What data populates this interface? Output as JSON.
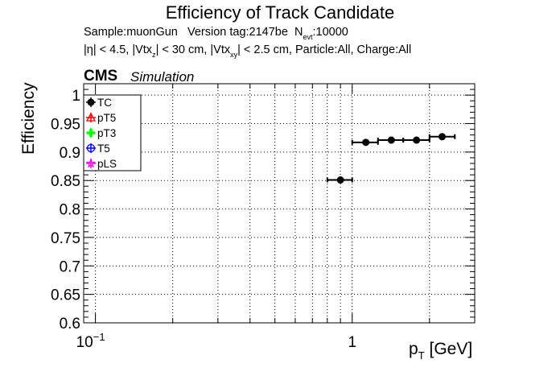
{
  "chart_data": {
    "type": "scatter",
    "title": "Efficiency of Track Candidate",
    "info_line1": {
      "sample": "Sample:muonGun",
      "version": "Version tag:2147be",
      "nevt_symbol": "N",
      "nevt_sub": "evt",
      "nevt_value": ":10000"
    },
    "info_line2": {
      "part1": "|η| < 4.5, |Vtx",
      "sub1": "z",
      "part2": "| < 30 cm, |Vtx",
      "sub2": "xy",
      "part3": "| < 2.5 cm, Particle:All, Charge:All"
    },
    "cms_label": "CMS",
    "simulation_label": "Simulation",
    "ylabel": "Efficiency",
    "xlabel_symbol": "p",
    "xlabel_sub": "T",
    "xlabel_unit": "[GeV]",
    "xscale": "log",
    "xlim": [
      0.09,
      3.0
    ],
    "ylim": [
      0.6,
      1.02
    ],
    "grid": true,
    "legend_position": "top-left",
    "x_tick_labels": [
      {
        "value": 0.1,
        "base": "10",
        "exp": "−1"
      },
      {
        "value": 1,
        "base": "1",
        "exp": ""
      }
    ],
    "y_ticks": [
      1,
      0.95,
      0.9,
      0.85,
      0.8,
      0.75,
      0.7,
      0.65,
      0.6
    ],
    "y_tick_labels": [
      "1",
      "0.95",
      "0.9",
      "0.85",
      "0.8",
      "0.75",
      "0.7",
      "0.65",
      "0.6"
    ],
    "series": [
      {
        "name": "TC",
        "color": "#000000",
        "marker": "filled-circle",
        "points": [
          {
            "x": 0.9,
            "y": 0.851,
            "xlo": 0.8,
            "xhi": 1.0
          },
          {
            "x": 1.13,
            "y": 0.917,
            "xlo": 1.0,
            "xhi": 1.26
          },
          {
            "x": 1.42,
            "y": 0.921,
            "xlo": 1.26,
            "xhi": 1.58
          },
          {
            "x": 1.78,
            "y": 0.921,
            "xlo": 1.58,
            "xhi": 2.0
          },
          {
            "x": 2.24,
            "y": 0.927,
            "xlo": 2.0,
            "xhi": 2.51
          }
        ]
      },
      {
        "name": "pT5",
        "color": "#ff0000",
        "marker": "open-triangle",
        "points": []
      },
      {
        "name": "pT3",
        "color": "#00ff00",
        "marker": "filled-cross",
        "points": []
      },
      {
        "name": "T5",
        "color": "#0000ff",
        "marker": "open-circle",
        "points": []
      },
      {
        "name": "pLS",
        "color": "#ff00ff",
        "marker": "open-star",
        "points": []
      }
    ]
  }
}
